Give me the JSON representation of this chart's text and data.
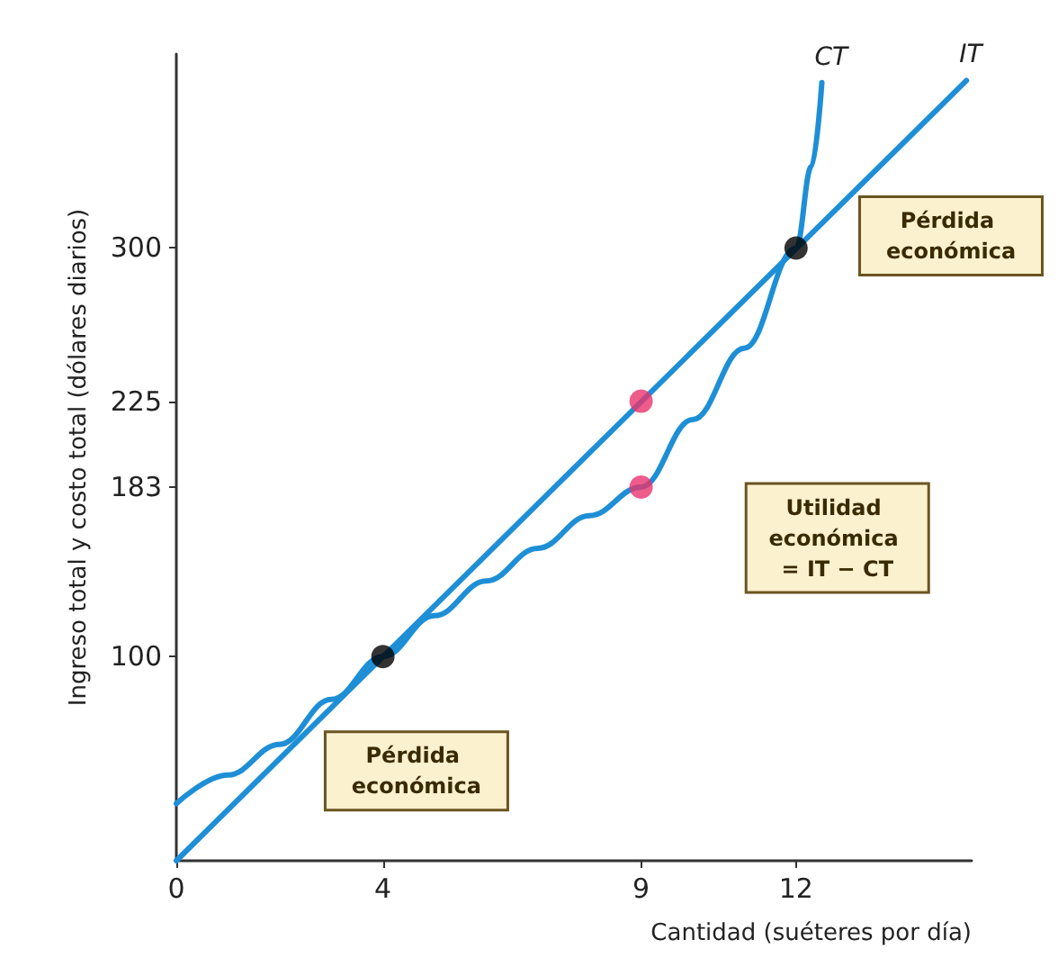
{
  "chart_data": {
    "type": "line",
    "xlabel": "Cantidad (suéteres por día)",
    "ylabel": "Ingreso total y costo total (dólares diarios)",
    "xlim": [
      0,
      15.4
    ],
    "ylim": [
      0,
      395
    ],
    "xticks": [
      0,
      4,
      9,
      12
    ],
    "yticks": [
      100,
      183,
      225,
      300
    ],
    "grid": false,
    "legend": false,
    "line_style": "solid",
    "series": [
      {
        "name": "CT",
        "color": "#1e8fd6",
        "x": [
          0,
          1,
          2,
          3,
          4,
          5,
          6,
          7,
          8,
          9,
          10,
          11,
          12,
          12.3,
          12.5
        ],
        "values": [
          28,
          42,
          57,
          79,
          100,
          120,
          137,
          153,
          169,
          183,
          216,
          251,
          300,
          340,
          381
        ]
      },
      {
        "name": "IT",
        "color": "#1e8fd6",
        "x": [
          0,
          15.3
        ],
        "values": [
          0,
          382
        ]
      },
      {
        "type": "scatter",
        "color": "#000000",
        "x": [
          4,
          12
        ],
        "values": [
          100,
          300
        ]
      },
      {
        "type": "scatter",
        "color": "#e8336d",
        "x": [
          9,
          9
        ],
        "values": [
          225,
          183
        ]
      }
    ],
    "annotations": [
      "Pérdida económica",
      "Utilidad económica = IT − CT",
      "Pérdida económica"
    ]
  }
}
